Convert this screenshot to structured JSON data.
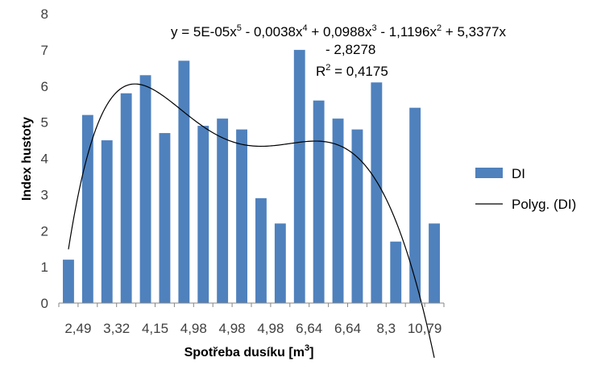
{
  "chart_data": {
    "type": "bar",
    "categories": [
      "2,49",
      "",
      "3,32",
      "",
      "4,15",
      "",
      "4,98",
      "",
      "4,98",
      "",
      "4,98",
      "",
      "6,64",
      "",
      "6,64",
      "",
      "8,3",
      "",
      "10,79",
      ""
    ],
    "series": [
      {
        "name": "DI",
        "values": [
          1.2,
          5.2,
          4.5,
          5.8,
          6.3,
          4.7,
          6.7,
          4.9,
          5.1,
          4.8,
          2.9,
          2.2,
          7.0,
          5.6,
          5.1,
          4.8,
          6.1,
          1.7,
          5.4,
          2.2
        ],
        "color": "#4f81bd"
      }
    ],
    "trendline": {
      "name": "Polyg. (DI)",
      "type": "polynomial",
      "order": 5,
      "coefficients": [
        5e-05,
        -0.0038,
        0.0988,
        -1.1196,
        5.3377,
        -2.8278
      ],
      "color": "#000000"
    },
    "equation": {
      "line1_parts": [
        "y = 5E-05x",
        "5",
        " - 0,0038x",
        "4",
        " + 0,0988x",
        "3",
        " - 1,1196x",
        "2",
        " + 5,3377x"
      ],
      "line2": "- 2,8278",
      "r2_prefix": "R",
      "r2_sup": "2",
      "r2_value": " = 0,4175"
    },
    "title": "",
    "xlabel": "Spotřeba dusíku [m",
    "xlabel_sup": "3",
    "xlabel_suffix": "]",
    "ylabel": "Index hustoty",
    "ylim": [
      0,
      8
    ],
    "yticks": [
      "0",
      "1",
      "2",
      "3",
      "4",
      "5",
      "6",
      "7",
      "8"
    ],
    "grid": false,
    "legend_position": "right"
  }
}
